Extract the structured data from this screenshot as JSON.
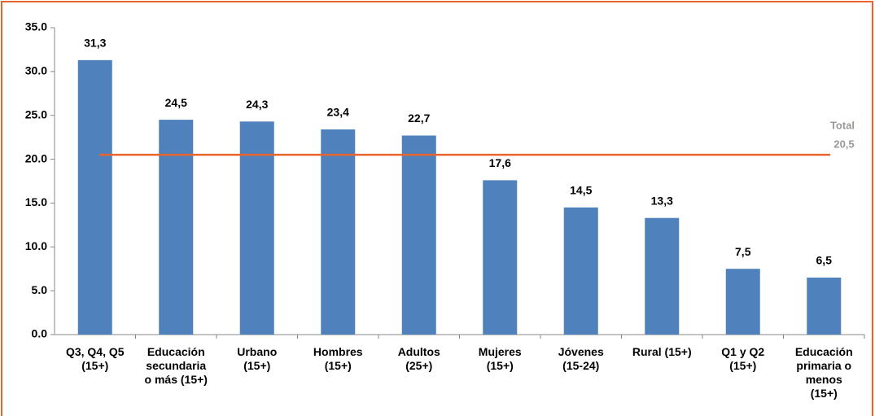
{
  "chart_data": {
    "type": "bar",
    "categories": [
      "Q3, Q4, Q5\n(15+)",
      "Educación\nsecundaria\no más (15+)",
      "Urbano\n(15+)",
      "Hombres\n(15+)",
      "Adultos\n(25+)",
      "Mujeres\n(15+)",
      "Jóvenes\n(15-24)",
      "Rural (15+)",
      "Q1 y Q2\n(15+)",
      "Educación\nprimaria o\nmenos\n(15+)"
    ],
    "values": [
      31.3,
      24.5,
      24.3,
      23.4,
      22.7,
      17.6,
      14.5,
      13.3,
      7.5,
      6.5
    ],
    "value_labels": [
      "31,3",
      "24,5",
      "24,3",
      "23,4",
      "22,7",
      "17,6",
      "14,5",
      "13,3",
      "7,5",
      "6,5"
    ],
    "color": "#4f81bd",
    "ylim": [
      0,
      35
    ],
    "yticks": [
      {
        "value": 0,
        "label": "0.0"
      },
      {
        "value": 5,
        "label": "5.0"
      },
      {
        "value": 10,
        "label": "10.0"
      },
      {
        "value": 15,
        "label": "15.0"
      },
      {
        "value": 20,
        "label": "20.0"
      },
      {
        "value": 25,
        "label": "25.0"
      },
      {
        "value": 30,
        "label": "30.0"
      },
      {
        "value": 35,
        "label": "35.0"
      }
    ],
    "reference_line": {
      "label": "Total",
      "value": 20.5,
      "value_label": "20,5",
      "color": "#e8642c"
    },
    "grid": false
  }
}
